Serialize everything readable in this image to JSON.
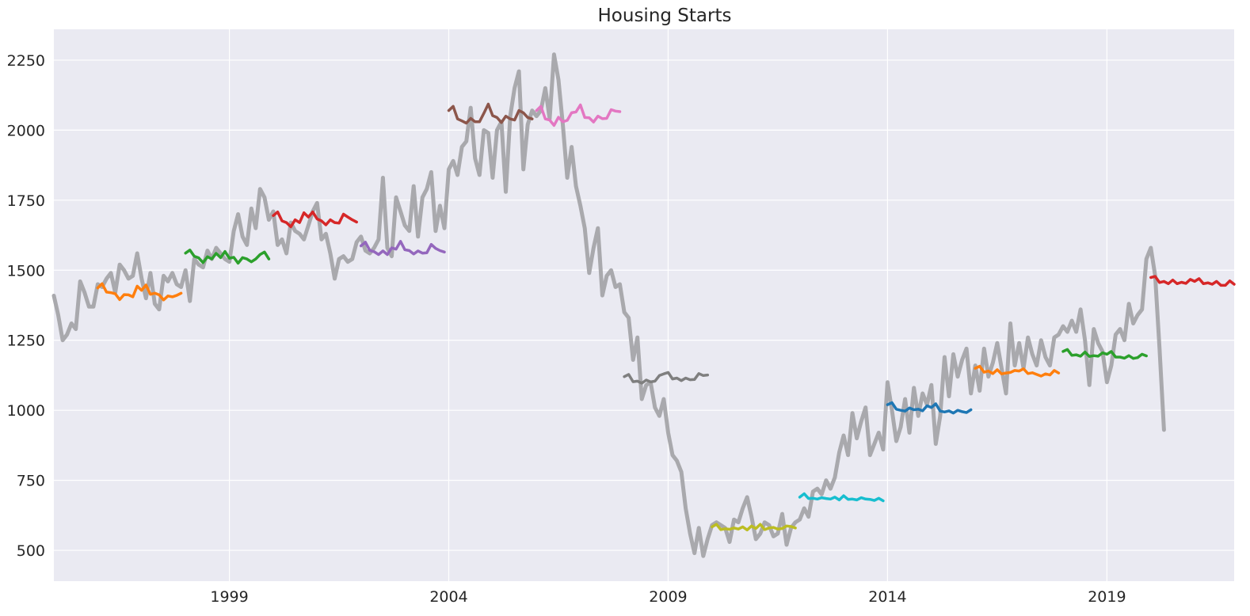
{
  "chart_data": {
    "type": "line",
    "title": "Housing Starts",
    "xlabel": "",
    "ylabel": "",
    "xlim": [
      1995.0,
      2021.9
    ],
    "ylim": [
      390,
      2360
    ],
    "x_ticks": [
      1999,
      2004,
      2009,
      2014,
      2019
    ],
    "y_ticks": [
      500,
      750,
      1000,
      1250,
      1500,
      1750,
      2000,
      2250
    ],
    "grid": true,
    "legend": "none",
    "colors": {
      "background": "#eaeaf2",
      "grid": "#ffffff",
      "actual": "#a9a9ad"
    },
    "actual": {
      "color": "#a9a9ad",
      "x": [
        1995.0,
        1995.1,
        1995.2,
        1995.3,
        1995.4,
        1995.5,
        1995.6,
        1995.7,
        1995.8,
        1995.9,
        1996.0,
        1996.1,
        1996.2,
        1996.3,
        1996.4,
        1996.5,
        1996.6,
        1996.7,
        1996.8,
        1996.9,
        1997.0,
        1997.1,
        1997.2,
        1997.3,
        1997.4,
        1997.5,
        1997.6,
        1997.7,
        1997.8,
        1997.9,
        1998.0,
        1998.1,
        1998.2,
        1998.3,
        1998.4,
        1998.5,
        1998.6,
        1998.7,
        1998.8,
        1998.9,
        1999.0,
        1999.1,
        1999.2,
        1999.3,
        1999.4,
        1999.5,
        1999.6,
        1999.7,
        1999.8,
        1999.9,
        2000.0,
        2000.1,
        2000.2,
        2000.3,
        2000.4,
        2000.5,
        2000.6,
        2000.7,
        2000.8,
        2000.9,
        2001.0,
        2001.1,
        2001.2,
        2001.3,
        2001.4,
        2001.5,
        2001.6,
        2001.7,
        2001.8,
        2001.9,
        2002.0,
        2002.1,
        2002.2,
        2002.3,
        2002.4,
        2002.5,
        2002.6,
        2002.7,
        2002.8,
        2002.9,
        2003.0,
        2003.1,
        2003.2,
        2003.3,
        2003.4,
        2003.5,
        2003.6,
        2003.7,
        2003.8,
        2003.9,
        2004.0,
        2004.1,
        2004.2,
        2004.3,
        2004.4,
        2004.5,
        2004.6,
        2004.7,
        2004.8,
        2004.9,
        2005.0,
        2005.1,
        2005.2,
        2005.3,
        2005.4,
        2005.5,
        2005.6,
        2005.7,
        2005.8,
        2005.9,
        2006.0,
        2006.1,
        2006.2,
        2006.3,
        2006.4,
        2006.5,
        2006.6,
        2006.7,
        2006.8,
        2006.9,
        2007.0,
        2007.1,
        2007.2,
        2007.3,
        2007.4,
        2007.5,
        2007.6,
        2007.7,
        2007.8,
        2007.9,
        2008.0,
        2008.1,
        2008.2,
        2008.3,
        2008.4,
        2008.5,
        2008.6,
        2008.7,
        2008.8,
        2008.9,
        2009.0,
        2009.1,
        2009.2,
        2009.3,
        2009.4,
        2009.5,
        2009.6,
        2009.7,
        2009.8,
        2009.9,
        2010.0,
        2010.1,
        2010.2,
        2010.3,
        2010.4,
        2010.5,
        2010.6,
        2010.7,
        2010.8,
        2010.9,
        2011.0,
        2011.1,
        2011.2,
        2011.3,
        2011.4,
        2011.5,
        2011.6,
        2011.7,
        2011.8,
        2011.9,
        2012.0,
        2012.1,
        2012.2,
        2012.3,
        2012.4,
        2012.5,
        2012.6,
        2012.7,
        2012.8,
        2012.9,
        2013.0,
        2013.1,
        2013.2,
        2013.3,
        2013.4,
        2013.5,
        2013.6,
        2013.7,
        2013.8,
        2013.9,
        2014.0,
        2014.1,
        2014.2,
        2014.3,
        2014.4,
        2014.5,
        2014.6,
        2014.7,
        2014.8,
        2014.9,
        2015.0,
        2015.1,
        2015.2,
        2015.3,
        2015.4,
        2015.5,
        2015.6,
        2015.7,
        2015.8,
        2015.9,
        2016.0,
        2016.1,
        2016.2,
        2016.3,
        2016.4,
        2016.5,
        2016.6,
        2016.7,
        2016.8,
        2016.9,
        2017.0,
        2017.1,
        2017.2,
        2017.3,
        2017.4,
        2017.5,
        2017.6,
        2017.7,
        2017.8,
        2017.9,
        2018.0,
        2018.1,
        2018.2,
        2018.3,
        2018.4,
        2018.5,
        2018.6,
        2018.7,
        2018.8,
        2018.9,
        2019.0,
        2019.1,
        2019.2,
        2019.3,
        2019.4,
        2019.5,
        2019.6,
        2019.7,
        2019.8,
        2019.9,
        2020.0,
        2020.1,
        2020.2,
        2020.3
      ],
      "y": [
        1409,
        1340,
        1250,
        1270,
        1310,
        1290,
        1460,
        1420,
        1370,
        1370,
        1450,
        1440,
        1470,
        1490,
        1420,
        1520,
        1500,
        1470,
        1480,
        1560,
        1470,
        1400,
        1490,
        1380,
        1360,
        1480,
        1460,
        1490,
        1450,
        1440,
        1500,
        1390,
        1540,
        1520,
        1510,
        1570,
        1540,
        1580,
        1560,
        1540,
        1530,
        1640,
        1700,
        1620,
        1590,
        1720,
        1650,
        1790,
        1760,
        1680,
        1710,
        1590,
        1610,
        1560,
        1670,
        1640,
        1630,
        1610,
        1660,
        1710,
        1740,
        1610,
        1630,
        1560,
        1470,
        1540,
        1550,
        1530,
        1540,
        1600,
        1620,
        1570,
        1560,
        1580,
        1610,
        1830,
        1580,
        1550,
        1760,
        1710,
        1660,
        1640,
        1800,
        1620,
        1760,
        1790,
        1850,
        1640,
        1730,
        1650,
        1860,
        1890,
        1840,
        1940,
        1960,
        2080,
        1900,
        1840,
        2000,
        1990,
        1830,
        2000,
        2030,
        1780,
        2050,
        2150,
        2210,
        1860,
        2020,
        2070,
        2050,
        2070,
        2150,
        2040,
        2270,
        2180,
        2020,
        1830,
        1940,
        1800,
        1730,
        1650,
        1490,
        1580,
        1650,
        1410,
        1480,
        1500,
        1440,
        1450,
        1350,
        1330,
        1180,
        1260,
        1040,
        1090,
        1100,
        1010,
        980,
        1040,
        920,
        840,
        820,
        780,
        650,
        560,
        490,
        580,
        480,
        540,
        590,
        600,
        590,
        580,
        530,
        610,
        600,
        650,
        690,
        620,
        540,
        560,
        600,
        590,
        550,
        560,
        630,
        520,
        580,
        600,
        610,
        650,
        620,
        710,
        720,
        700,
        750,
        720,
        760,
        850,
        910,
        840,
        990,
        900,
        960,
        1010,
        840,
        880,
        920,
        860,
        1100,
        1000,
        890,
        940,
        1040,
        920,
        1080,
        980,
        1060,
        1020,
        1090,
        880,
        980,
        1190,
        1050,
        1200,
        1120,
        1180,
        1220,
        1060,
        1160,
        1070,
        1220,
        1120,
        1170,
        1240,
        1150,
        1060,
        1310,
        1160,
        1240,
        1150,
        1260,
        1200,
        1160,
        1250,
        1190,
        1160,
        1260,
        1270,
        1300,
        1280,
        1320,
        1280,
        1360,
        1250,
        1090,
        1290,
        1240,
        1210,
        1100,
        1160,
        1270,
        1290,
        1250,
        1380,
        1310,
        1340,
        1360,
        1540,
        1580,
        1480,
        1220,
        930
      ]
    },
    "series": [
      {
        "color": "#ff7f0e",
        "x": [
          1996.0,
          1996.1,
          1996.2,
          1996.3,
          1996.4,
          1996.5,
          1996.6,
          1996.7,
          1996.8,
          1996.9,
          1997.0,
          1997.1,
          1997.2,
          1997.3,
          1997.4,
          1997.5,
          1997.6,
          1997.7,
          1997.8,
          1997.9
        ],
        "y": [
          1437,
          1452,
          1422,
          1420,
          1416,
          1395,
          1413,
          1412,
          1405,
          1443,
          1428,
          1447,
          1414,
          1418,
          1412,
          1394,
          1408,
          1405,
          1410,
          1418
        ]
      },
      {
        "color": "#2ca02c",
        "x": [
          1998.0,
          1998.1,
          1998.2,
          1998.3,
          1998.4,
          1998.5,
          1998.6,
          1998.7,
          1998.8,
          1998.9,
          1999.0,
          1999.1,
          1999.2,
          1999.3,
          1999.4,
          1999.5,
          1999.6,
          1999.7,
          1999.8,
          1999.9
        ],
        "y": [
          1561,
          1572,
          1550,
          1544,
          1527,
          1548,
          1540,
          1560,
          1545,
          1567,
          1543,
          1546,
          1525,
          1545,
          1540,
          1530,
          1540,
          1556,
          1565,
          1540
        ]
      },
      {
        "color": "#d62728",
        "x": [
          2000.0,
          2000.1,
          2000.2,
          2000.3,
          2000.4,
          2000.5,
          2000.6,
          2000.7,
          2000.8,
          2000.9,
          2001.0,
          2001.1,
          2001.2,
          2001.3,
          2001.4,
          2001.5,
          2001.6,
          2001.7,
          2001.8,
          2001.9
        ],
        "y": [
          1695,
          1708,
          1676,
          1670,
          1655,
          1680,
          1670,
          1705,
          1690,
          1708,
          1683,
          1676,
          1662,
          1680,
          1670,
          1668,
          1700,
          1690,
          1680,
          1672
        ]
      },
      {
        "color": "#9467bd",
        "x": [
          2002.0,
          2002.1,
          2002.2,
          2002.3,
          2002.4,
          2002.5,
          2002.6,
          2002.7,
          2002.8,
          2002.9,
          2003.0,
          2003.1,
          2003.2,
          2003.3,
          2003.4,
          2003.5,
          2003.6,
          2003.7,
          2003.8,
          2003.9
        ],
        "y": [
          1587,
          1600,
          1571,
          1566,
          1556,
          1569,
          1556,
          1580,
          1575,
          1603,
          1573,
          1570,
          1558,
          1569,
          1561,
          1562,
          1592,
          1578,
          1570,
          1565
        ]
      },
      {
        "color": "#8c564b",
        "x": [
          2004.0,
          2004.1,
          2004.2,
          2004.3,
          2004.4,
          2004.5,
          2004.6,
          2004.7,
          2004.8,
          2004.9,
          2005.0,
          2005.1,
          2005.2,
          2005.3,
          2005.4,
          2005.5,
          2005.6,
          2005.7,
          2005.8,
          2005.9
        ],
        "y": [
          2070,
          2085,
          2040,
          2033,
          2025,
          2042,
          2030,
          2030,
          2060,
          2093,
          2052,
          2045,
          2027,
          2050,
          2040,
          2036,
          2070,
          2062,
          2045,
          2040
        ]
      },
      {
        "color": "#e377c2",
        "x": [
          2006.0,
          2006.1,
          2006.2,
          2006.3,
          2006.4,
          2006.5,
          2006.6,
          2006.7,
          2006.8,
          2006.9,
          2007.0,
          2007.1,
          2007.2,
          2007.3,
          2007.4,
          2007.5,
          2007.6,
          2007.7,
          2007.8,
          2007.9
        ],
        "y": [
          2070,
          2085,
          2040,
          2036,
          2017,
          2046,
          2030,
          2035,
          2062,
          2065,
          2090,
          2045,
          2044,
          2029,
          2050,
          2041,
          2042,
          2073,
          2068,
          2066
        ]
      },
      {
        "color": "#7f7f7f",
        "x": [
          2008.0,
          2008.1,
          2008.2,
          2008.3,
          2008.4,
          2008.5,
          2008.6,
          2008.7,
          2008.8,
          2008.9,
          2009.0,
          2009.1,
          2009.2,
          2009.3,
          2009.4,
          2009.5,
          2009.6,
          2009.7,
          2009.8,
          2009.9
        ],
        "y": [
          1120,
          1128,
          1102,
          1104,
          1097,
          1108,
          1101,
          1104,
          1124,
          1130,
          1135,
          1112,
          1115,
          1106,
          1115,
          1109,
          1110,
          1131,
          1124,
          1126
        ]
      },
      {
        "color": "#bcbd22",
        "x": [
          2010.0,
          2010.1,
          2010.2,
          2010.3,
          2010.4,
          2010.5,
          2010.6,
          2010.7,
          2010.8,
          2010.9,
          2011.0,
          2011.1,
          2011.2,
          2011.3,
          2011.4,
          2011.5,
          2011.6,
          2011.7,
          2011.8,
          2011.9
        ],
        "y": [
          584,
          593,
          574,
          577,
          575,
          580,
          576,
          584,
          573,
          587,
          578,
          593,
          574,
          580,
          582,
          576,
          578,
          587,
          585,
          580
        ]
      },
      {
        "color": "#17becf",
        "x": [
          2012.0,
          2012.1,
          2012.2,
          2012.3,
          2012.4,
          2012.5,
          2012.6,
          2012.7,
          2012.8,
          2012.9,
          2013.0,
          2013.1,
          2013.2,
          2013.3,
          2013.4,
          2013.5,
          2013.6,
          2013.7,
          2013.8,
          2013.9
        ],
        "y": [
          690,
          702,
          685,
          686,
          683,
          688,
          685,
          683,
          690,
          680,
          695,
          682,
          683,
          680,
          688,
          683,
          682,
          678,
          686,
          677
        ]
      },
      {
        "color": "#1f77b4",
        "x": [
          2014.0,
          2014.1,
          2014.2,
          2014.3,
          2014.4,
          2014.5,
          2014.6,
          2014.7,
          2014.8,
          2014.9,
          2015.0,
          2015.1,
          2015.2,
          2015.3,
          2015.4,
          2015.5,
          2015.6,
          2015.7,
          2015.8,
          2015.9
        ],
        "y": [
          1020,
          1027,
          1004,
          1000,
          997,
          1008,
          1002,
          1004,
          998,
          1016,
          1010,
          1023,
          997,
          994,
          998,
          990,
          1000,
          995,
          992,
          1002
        ]
      },
      {
        "color": "#ff7f0e",
        "x": [
          2016.0,
          2016.1,
          2016.2,
          2016.3,
          2016.4,
          2016.5,
          2016.6,
          2016.7,
          2016.8,
          2016.9,
          2017.0,
          2017.1,
          2017.2,
          2017.3,
          2017.4,
          2017.5,
          2017.6,
          2017.7,
          2017.8,
          2017.9
        ],
        "y": [
          1150,
          1157,
          1136,
          1140,
          1131,
          1145,
          1130,
          1133,
          1135,
          1142,
          1140,
          1148,
          1131,
          1134,
          1128,
          1122,
          1130,
          1126,
          1142,
          1133
        ]
      },
      {
        "color": "#2ca02c",
        "x": [
          2018.0,
          2018.1,
          2018.2,
          2018.3,
          2018.4,
          2018.5,
          2018.6,
          2018.7,
          2018.8,
          2018.9,
          2019.0,
          2019.1,
          2019.2,
          2019.3,
          2019.4,
          2019.5,
          2019.6,
          2019.7,
          2019.8,
          2019.9
        ],
        "y": [
          1210,
          1217,
          1196,
          1198,
          1193,
          1208,
          1192,
          1195,
          1193,
          1205,
          1200,
          1210,
          1190,
          1190,
          1186,
          1195,
          1185,
          1188,
          1200,
          1194
        ]
      },
      {
        "color": "#d62728",
        "x": [
          2020.0,
          2020.1,
          2020.2,
          2020.3,
          2020.4,
          2020.5,
          2020.6,
          2020.7,
          2020.8,
          2020.9,
          2021.0,
          2021.1,
          2021.2,
          2021.3,
          2021.4,
          2021.5,
          2021.6,
          2021.7,
          2021.8,
          2021.9
        ],
        "y": [
          1474,
          1478,
          1456,
          1460,
          1452,
          1465,
          1452,
          1457,
          1453,
          1467,
          1460,
          1470,
          1452,
          1455,
          1450,
          1460,
          1446,
          1446,
          1462,
          1450
        ]
      }
    ]
  }
}
